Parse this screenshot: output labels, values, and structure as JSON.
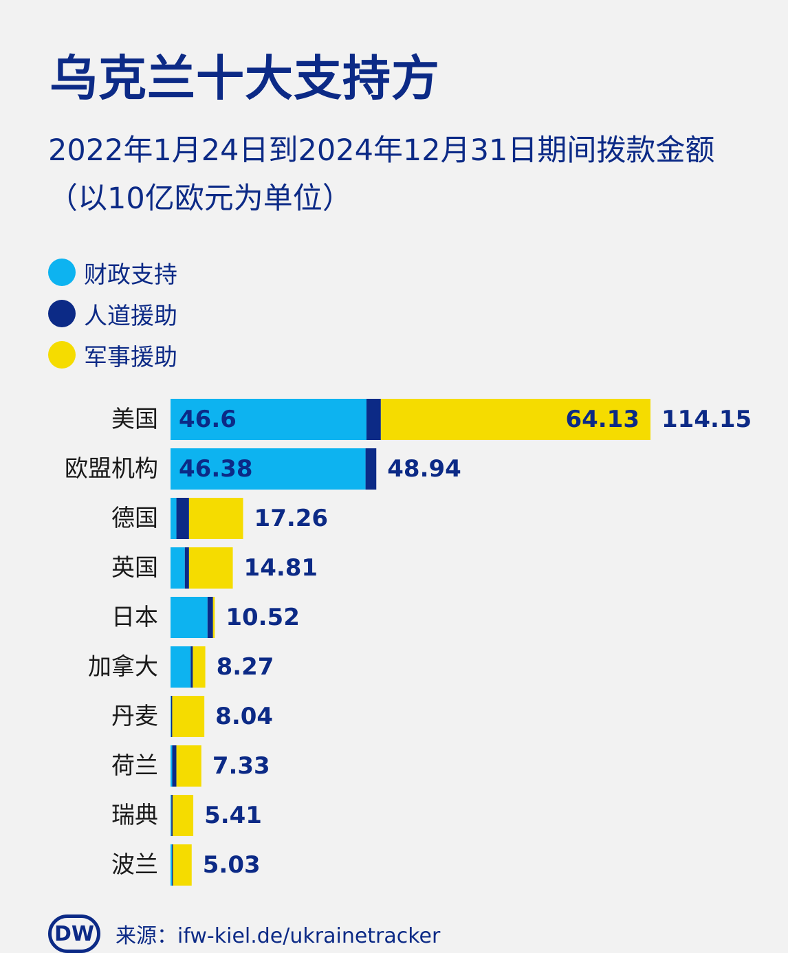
{
  "title": "乌克兰十大支持方",
  "subtitle": "2022年1月24日到2024年12月31日期间拨款金额（以10亿欧元为单位）",
  "legend": [
    {
      "label": "财政支持",
      "color": "#0db3f0"
    },
    {
      "label": "人道援助",
      "color": "#0c2a86"
    },
    {
      "label": "军事援助",
      "color": "#f5dc00"
    }
  ],
  "chart_data": {
    "type": "bar",
    "orientation": "horizontal",
    "stacked": true,
    "title": "乌克兰十大支持方",
    "categories": [
      "美国",
      "欧盟机构",
      "德国",
      "英国",
      "日本",
      "加拿大",
      "丹麦",
      "荷兰",
      "瑞典",
      "波兰"
    ],
    "series": [
      {
        "name": "财政支持",
        "color": "#0db3f0",
        "values": [
          46.6,
          46.38,
          1.4,
          3.4,
          8.8,
          4.8,
          0.15,
          0.4,
          0.2,
          0.35
        ]
      },
      {
        "name": "人道援助",
        "color": "#0c2a86",
        "values": [
          3.42,
          2.56,
          3.0,
          1.0,
          1.3,
          0.5,
          0.25,
          1.0,
          0.3,
          0.25
        ]
      },
      {
        "name": "军事援助",
        "color": "#f5dc00",
        "values": [
          64.13,
          0,
          12.86,
          10.41,
          0.42,
          2.97,
          7.64,
          5.93,
          4.91,
          4.43
        ]
      }
    ],
    "totals": [
      "114.15",
      "48.94",
      "17.26",
      "14.81",
      "10.52",
      "8.27",
      "8.04",
      "7.33",
      "5.41",
      "5.03"
    ],
    "inner_labels": [
      {
        "category": "美国",
        "series": "财政支持",
        "text": "46.6"
      },
      {
        "category": "美国",
        "series": "军事援助",
        "text": "64.13"
      },
      {
        "category": "欧盟机构",
        "series": "财政支持",
        "text": "46.38"
      }
    ],
    "xlim": [
      0,
      114.15
    ]
  },
  "footer": {
    "logo_text": "DW",
    "source": "来源：ifw-kiel.de/ukrainetracker"
  }
}
